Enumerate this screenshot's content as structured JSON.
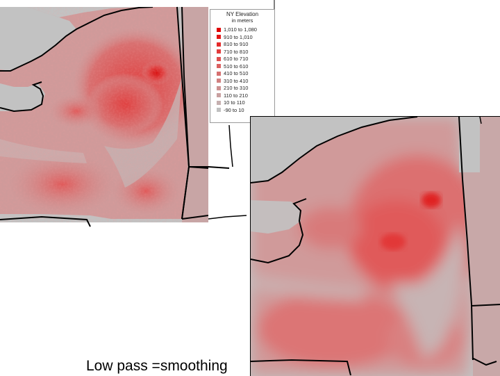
{
  "legend": {
    "title": "NY Elevation",
    "subtitle": "in meters",
    "items": [
      {
        "label": "1,010 to 1,080",
        "color": "#e00000"
      },
      {
        "label": "910 to 1,010",
        "color": "#e41515"
      },
      {
        "label": "810 to 910",
        "color": "#e52a2a"
      },
      {
        "label": "710 to 810",
        "color": "#e23c3c"
      },
      {
        "label": "610 to 710",
        "color": "#df4e4e"
      },
      {
        "label": "510 to 610",
        "color": "#db6060"
      },
      {
        "label": "410 to 510",
        "color": "#d67070"
      },
      {
        "label": "310 to 410",
        "color": "#d18080"
      },
      {
        "label": "210 to 310",
        "color": "#cc9090"
      },
      {
        "label": "110 to 210",
        "color": "#c9a0a0"
      },
      {
        "label": "10 to 110",
        "color": "#c6b0b0"
      },
      {
        "label": "-90 to 10",
        "color": "#c0c0c0"
      }
    ]
  },
  "caption": "Low pass =smoothing",
  "colors": {
    "background_gray": "#c0c0c0",
    "boundary": "#000000"
  }
}
